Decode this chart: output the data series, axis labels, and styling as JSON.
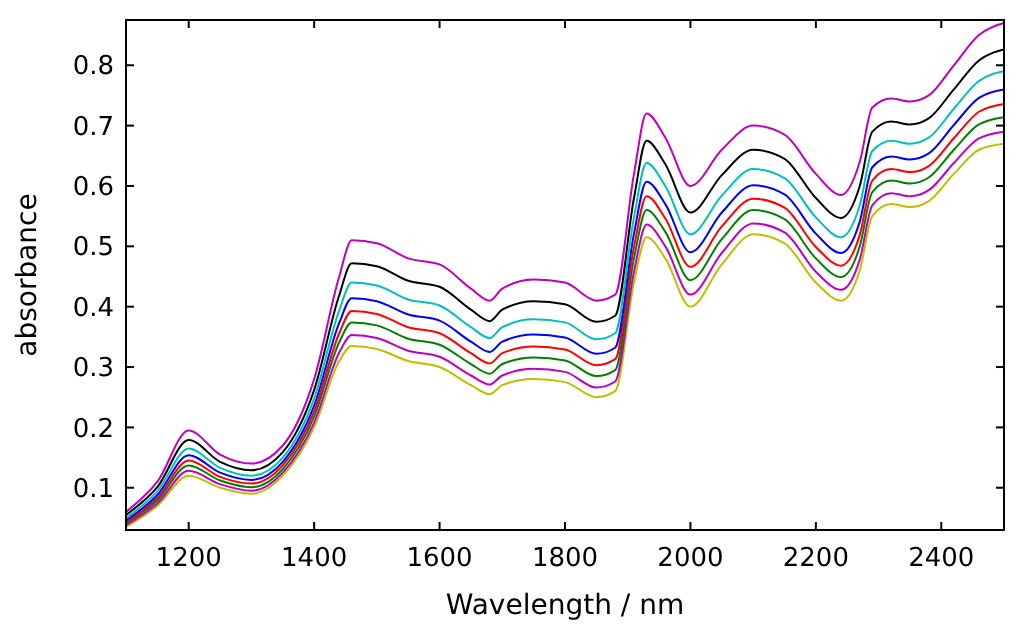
{
  "chart_data": {
    "type": "line",
    "xlabel": "Wavelength / nm",
    "ylabel": "absorbance",
    "grid": false,
    "marker": "none",
    "line_style": "solid",
    "x": [
      1100,
      1150,
      1200,
      1250,
      1300,
      1350,
      1400,
      1440,
      1460,
      1500,
      1550,
      1600,
      1650,
      1680,
      1700,
      1750,
      1800,
      1850,
      1880,
      1910,
      1930,
      1960,
      2000,
      2050,
      2100,
      2150,
      2200,
      2240,
      2270,
      2290,
      2320,
      2350,
      2380,
      2420,
      2460,
      2500
    ],
    "xlim": [
      1100,
      2500
    ],
    "xticks": [
      1200,
      1400,
      1600,
      1800,
      2000,
      2200,
      2400
    ],
    "ylim": [
      0.03,
      0.875
    ],
    "yticks": [
      0.1,
      0.2,
      0.3,
      0.4,
      0.5,
      0.6,
      0.7,
      0.8
    ],
    "series": [
      {
        "color": "#bfbf00",
        "values": [
          0.035,
          0.07,
          0.12,
          0.1,
          0.09,
          0.12,
          0.2,
          0.31,
          0.335,
          0.33,
          0.31,
          0.3,
          0.27,
          0.255,
          0.27,
          0.28,
          0.275,
          0.25,
          0.26,
          0.44,
          0.515,
          0.48,
          0.4,
          0.47,
          0.52,
          0.505,
          0.44,
          0.41,
          0.46,
          0.55,
          0.57,
          0.565,
          0.575,
          0.62,
          0.66,
          0.67
        ]
      },
      {
        "color": "#bf00bf",
        "values": [
          0.038,
          0.074,
          0.128,
          0.106,
          0.095,
          0.125,
          0.208,
          0.324,
          0.353,
          0.348,
          0.327,
          0.317,
          0.286,
          0.271,
          0.286,
          0.297,
          0.292,
          0.266,
          0.276,
          0.458,
          0.536,
          0.5,
          0.42,
          0.489,
          0.538,
          0.523,
          0.458,
          0.428,
          0.478,
          0.568,
          0.588,
          0.583,
          0.593,
          0.638,
          0.679,
          0.69
        ]
      },
      {
        "color": "#008000",
        "values": [
          0.041,
          0.079,
          0.137,
          0.112,
          0.101,
          0.131,
          0.218,
          0.341,
          0.374,
          0.369,
          0.347,
          0.337,
          0.305,
          0.289,
          0.305,
          0.316,
          0.311,
          0.285,
          0.295,
          0.48,
          0.56,
          0.524,
          0.444,
          0.512,
          0.56,
          0.545,
          0.48,
          0.449,
          0.5,
          0.59,
          0.609,
          0.604,
          0.614,
          0.66,
          0.702,
          0.714
        ]
      },
      {
        "color": "#ff0000",
        "values": [
          0.043,
          0.083,
          0.145,
          0.118,
          0.107,
          0.137,
          0.226,
          0.356,
          0.393,
          0.388,
          0.366,
          0.356,
          0.323,
          0.306,
          0.323,
          0.334,
          0.329,
          0.303,
          0.313,
          0.499,
          0.583,
          0.546,
          0.466,
          0.533,
          0.579,
          0.564,
          0.499,
          0.468,
          0.519,
          0.609,
          0.628,
          0.623,
          0.633,
          0.679,
          0.723,
          0.736
        ]
      },
      {
        "color": "#0000ff",
        "values": [
          0.046,
          0.088,
          0.154,
          0.125,
          0.113,
          0.143,
          0.236,
          0.373,
          0.414,
          0.409,
          0.387,
          0.377,
          0.342,
          0.325,
          0.342,
          0.354,
          0.349,
          0.322,
          0.332,
          0.521,
          0.607,
          0.57,
          0.49,
          0.556,
          0.601,
          0.586,
          0.521,
          0.489,
          0.541,
          0.631,
          0.649,
          0.644,
          0.654,
          0.701,
          0.746,
          0.76
        ]
      },
      {
        "color": "#00bfbf",
        "values": [
          0.05,
          0.094,
          0.165,
          0.133,
          0.12,
          0.15,
          0.248,
          0.394,
          0.44,
          0.435,
          0.412,
          0.402,
          0.366,
          0.348,
          0.366,
          0.379,
          0.374,
          0.346,
          0.356,
          0.548,
          0.638,
          0.6,
          0.52,
          0.584,
          0.628,
          0.613,
          0.548,
          0.515,
          0.568,
          0.658,
          0.675,
          0.67,
          0.68,
          0.728,
          0.774,
          0.79
        ]
      },
      {
        "color": "#000000",
        "values": [
          0.055,
          0.101,
          0.179,
          0.143,
          0.129,
          0.159,
          0.262,
          0.419,
          0.472,
          0.467,
          0.443,
          0.433,
          0.395,
          0.376,
          0.395,
          0.409,
          0.404,
          0.375,
          0.385,
          0.58,
          0.675,
          0.636,
          0.556,
          0.618,
          0.66,
          0.645,
          0.58,
          0.547,
          0.6,
          0.69,
          0.707,
          0.702,
          0.712,
          0.76,
          0.808,
          0.826
        ]
      },
      {
        "color": "#bf00bf",
        "values": [
          0.06,
          0.11,
          0.195,
          0.155,
          0.14,
          0.17,
          0.28,
          0.45,
          0.51,
          0.505,
          0.48,
          0.47,
          0.43,
          0.41,
          0.43,
          0.445,
          0.44,
          0.41,
          0.42,
          0.62,
          0.72,
          0.68,
          0.6,
          0.66,
          0.7,
          0.685,
          0.62,
          0.585,
          0.64,
          0.73,
          0.745,
          0.74,
          0.75,
          0.8,
          0.85,
          0.87
        ]
      }
    ]
  }
}
